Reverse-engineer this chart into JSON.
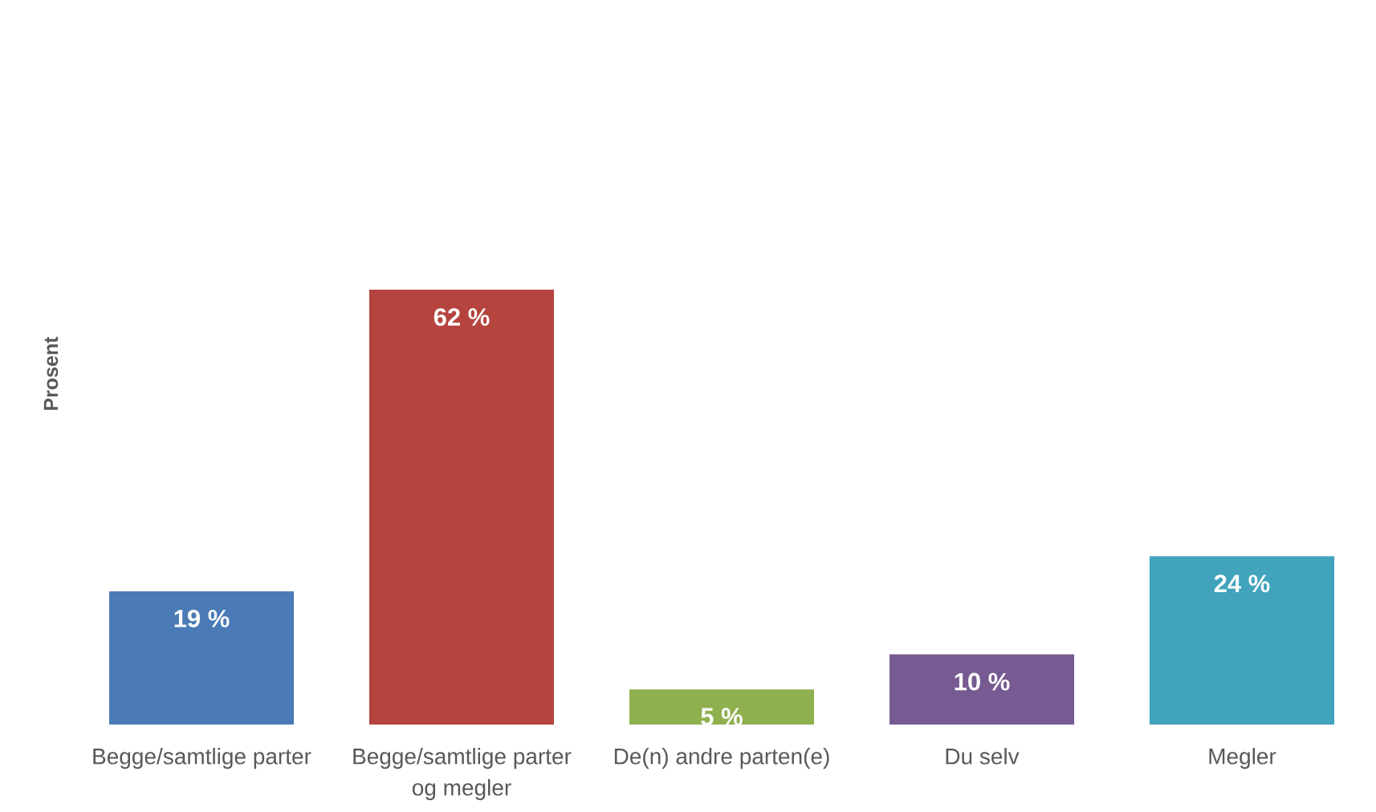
{
  "chart_data": {
    "type": "bar",
    "ylabel": "Prosent",
    "categories": [
      "Begge/samtlige parter",
      "Begge/samtlige parter og megler",
      "De(n) andre parten(e)",
      "Du selv",
      "Megler"
    ],
    "values": [
      19,
      62,
      5,
      10,
      24
    ],
    "value_labels": [
      "19 %",
      "62 %",
      "5 %",
      "10 %",
      "24 %"
    ],
    "colors": [
      "#4a7bb6",
      "#b5443f",
      "#8fb04f",
      "#775a92",
      "#42a3bd"
    ],
    "tick_labels": "x"
  }
}
